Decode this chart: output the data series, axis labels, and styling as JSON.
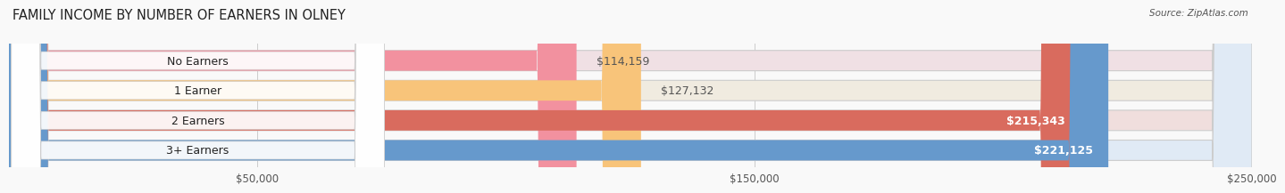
{
  "title": "FAMILY INCOME BY NUMBER OF EARNERS IN OLNEY",
  "source": "Source: ZipAtlas.com",
  "categories": [
    "No Earners",
    "1 Earner",
    "2 Earners",
    "3+ Earners"
  ],
  "values": [
    114159,
    127132,
    215343,
    221125
  ],
  "bar_colors": [
    "#f2919f",
    "#f8c47a",
    "#d96b5e",
    "#6699cc"
  ],
  "label_colors": [
    "#555555",
    "#555555",
    "#ffffff",
    "#ffffff"
  ],
  "bar_bg_colors": [
    "#f0e0e4",
    "#f0ebe0",
    "#f0dedd",
    "#e0eaf5"
  ],
  "bar_bg_border": "#dddddd",
  "xlim": [
    0,
    250000
  ],
  "xticks": [
    50000,
    150000,
    250000
  ],
  "xtick_labels": [
    "$50,000",
    "$150,000",
    "$250,000"
  ],
  "value_labels": [
    "$114,159",
    "$127,132",
    "$215,343",
    "$221,125"
  ],
  "title_fontsize": 10.5,
  "label_fontsize": 9,
  "bar_height": 0.68,
  "background_color": "#f9f9f9"
}
